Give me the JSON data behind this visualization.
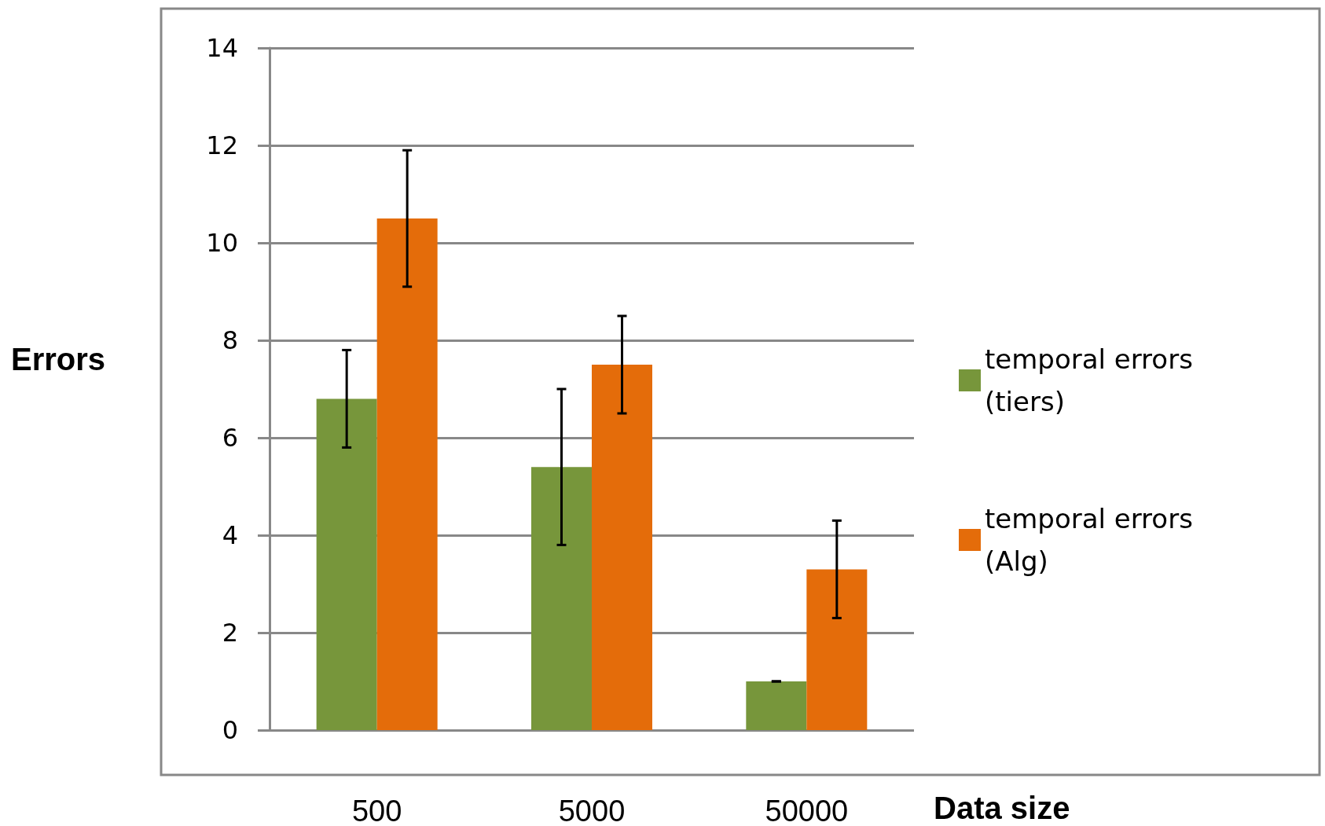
{
  "chart_data": {
    "type": "bar",
    "xlabel": "Data size",
    "ylabel": "Errors",
    "categories": [
      "500",
      "5000",
      "50000"
    ],
    "series": [
      {
        "name": "temporal errors (tiers)",
        "color": "#77963b",
        "values": [
          6.8,
          5.4,
          1.0
        ],
        "errors": [
          1.0,
          1.6,
          0
        ]
      },
      {
        "name": "temporal errors (Alg)",
        "color": "#e46c0a",
        "values": [
          10.5,
          7.5,
          3.3
        ],
        "errors": [
          1.4,
          1.0,
          1.0
        ]
      }
    ],
    "ylim": [
      0,
      14
    ],
    "yticks": [
      0,
      2,
      4,
      6,
      8,
      10,
      12,
      14
    ],
    "grid": "y",
    "legend": "right"
  }
}
